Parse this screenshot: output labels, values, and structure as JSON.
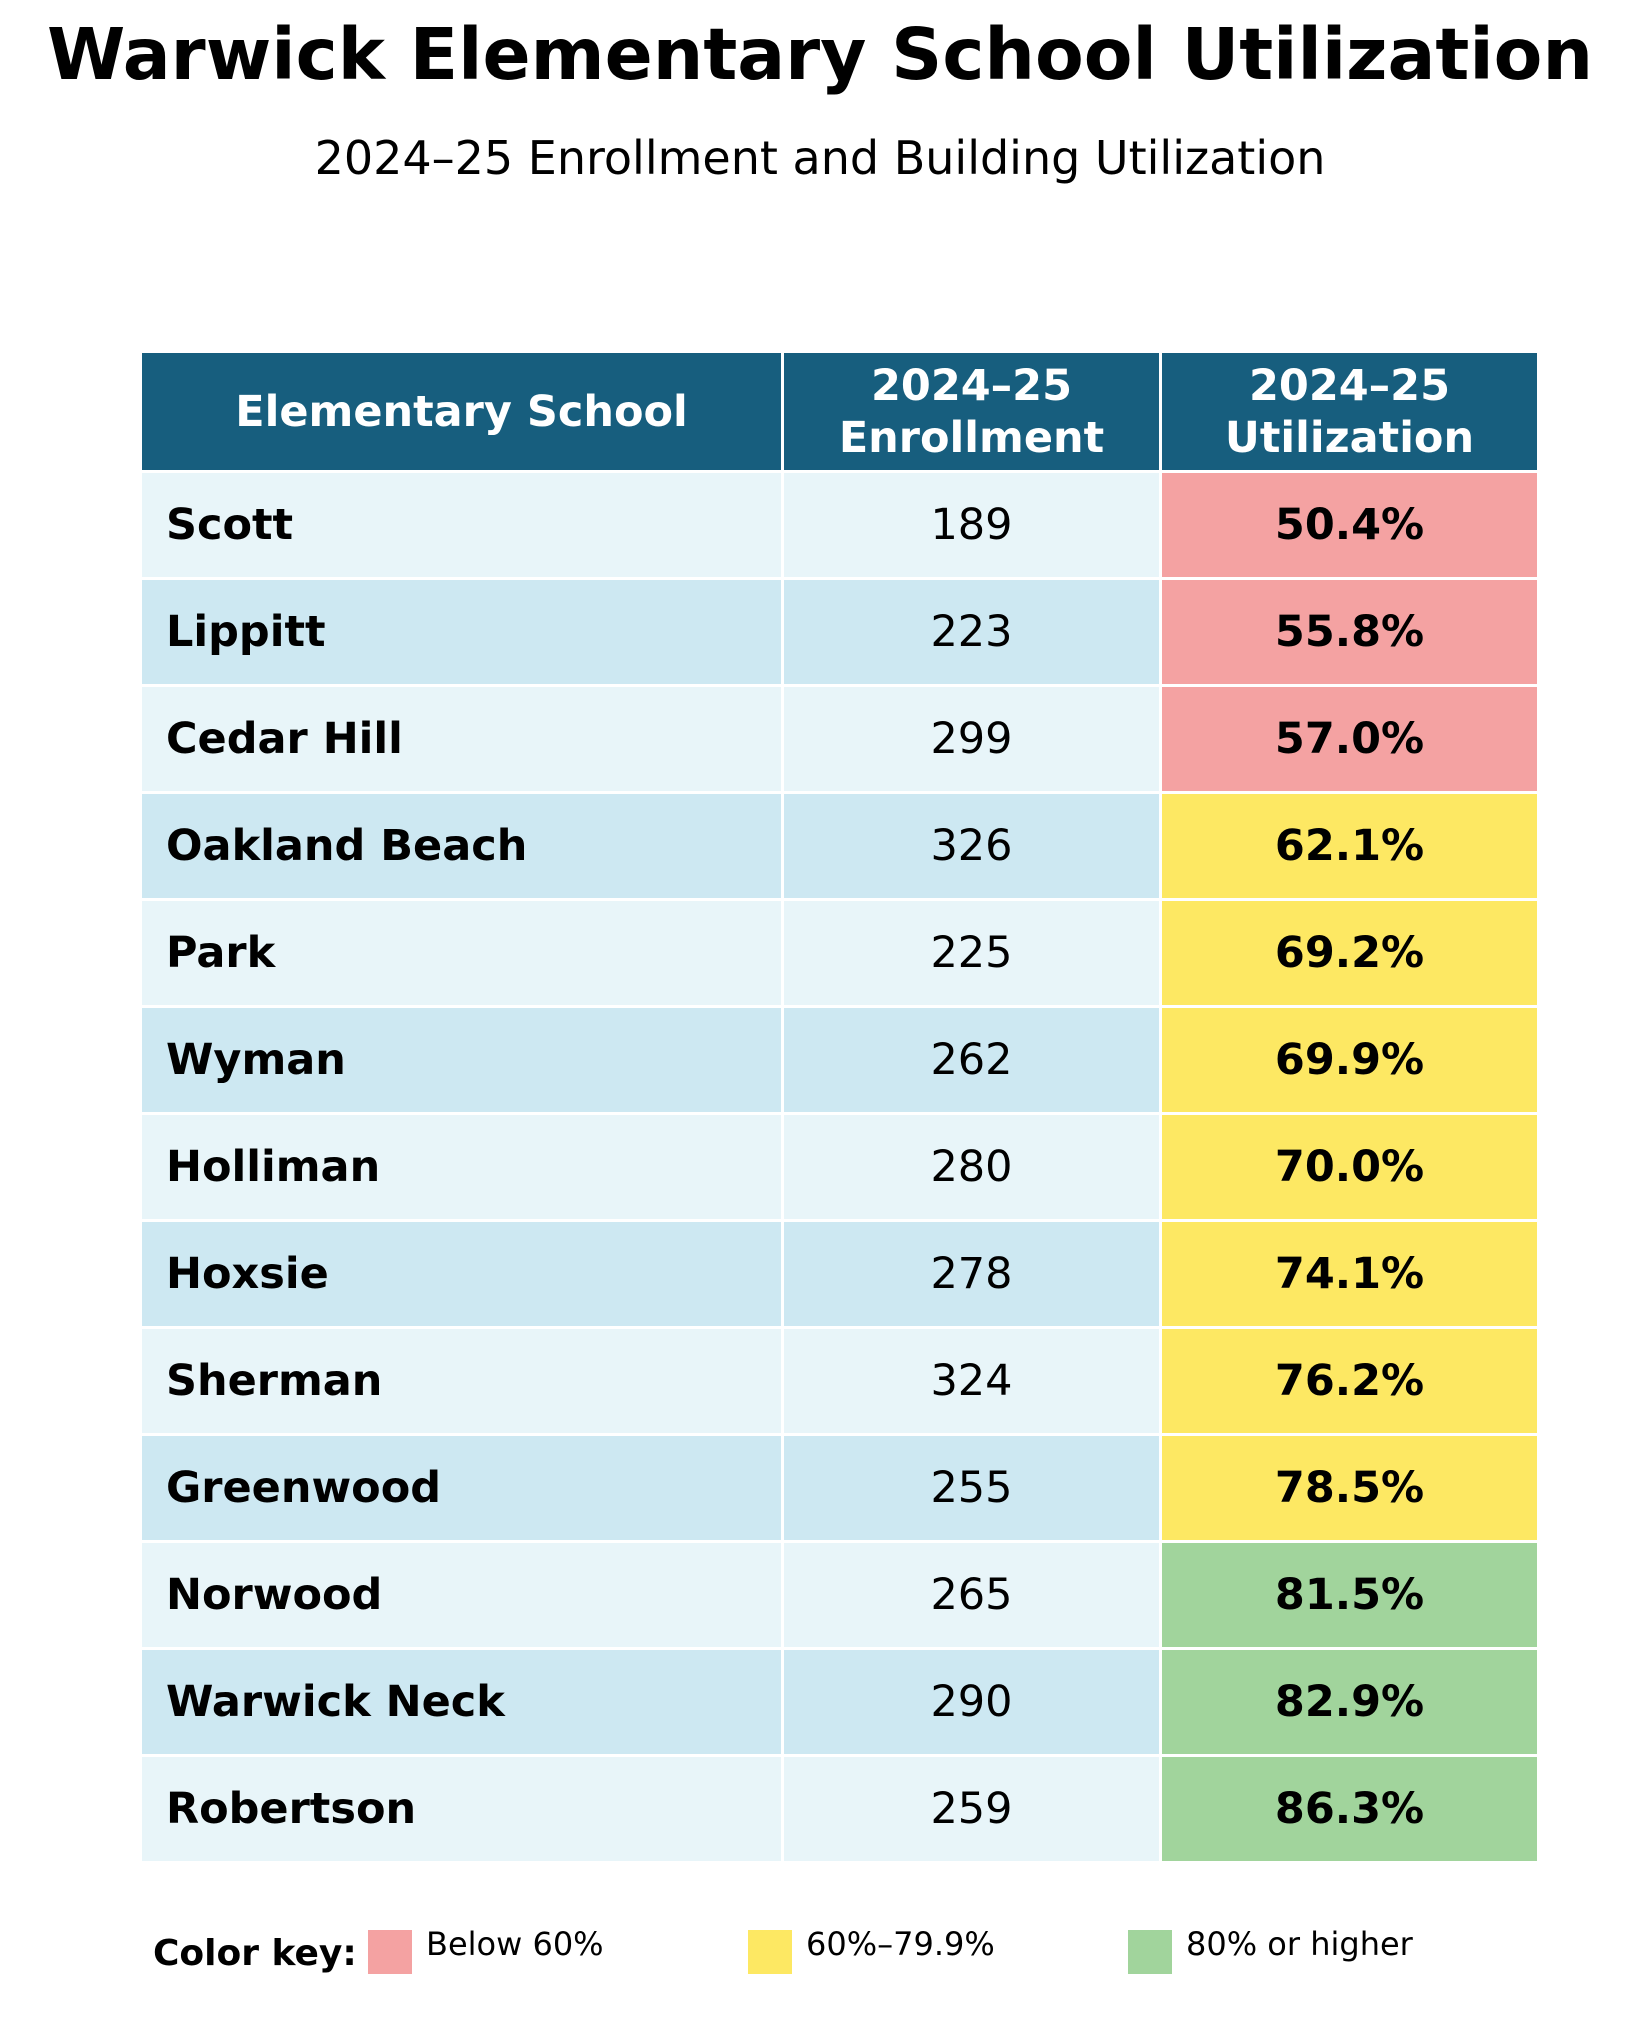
{
  "title": "Warwick Elementary School Utilization",
  "subtitle": "2024–25 Enrollment and Building Utilization",
  "header": {
    "school": "Elementary School",
    "enroll_line1": "2024–25",
    "enroll_line2": "Enrollment",
    "util_line1": "2024–25",
    "util_line2": "Utilization"
  },
  "colors": {
    "header_bg": "#175e7e",
    "row_light": "#e8f5f9",
    "row_dark": "#cde8f2",
    "below_60": "#f4a2a2",
    "from_60_to_79_9": "#fde863",
    "from_80": "#a1d49c"
  },
  "chart_data": {
    "type": "table",
    "title": "Warwick Elementary School Utilization",
    "subtitle": "2024–25 Enrollment and Building Utilization",
    "columns": [
      "Elementary School",
      "2024–25 Enrollment",
      "2024–25 Utilization"
    ],
    "rows": [
      {
        "school": "Scott",
        "enrollment": "189",
        "utilization": "50.4%",
        "utilization_value": 50.4
      },
      {
        "school": "Lippitt",
        "enrollment": "223",
        "utilization": "55.8%",
        "utilization_value": 55.8
      },
      {
        "school": "Cedar Hill",
        "enrollment": "299",
        "utilization": "57.0%",
        "utilization_value": 57.0
      },
      {
        "school": "Oakland Beach",
        "enrollment": "326",
        "utilization": "62.1%",
        "utilization_value": 62.1
      },
      {
        "school": "Park",
        "enrollment": "225",
        "utilization": "69.2%",
        "utilization_value": 69.2
      },
      {
        "school": "Wyman",
        "enrollment": "262",
        "utilization": "69.9%",
        "utilization_value": 69.9
      },
      {
        "school": "Holliman",
        "enrollment": "280",
        "utilization": "70.0%",
        "utilization_value": 70.0
      },
      {
        "school": "Hoxsie",
        "enrollment": "278",
        "utilization": "74.1%",
        "utilization_value": 74.1
      },
      {
        "school": "Sherman",
        "enrollment": "324",
        "utilization": "76.2%",
        "utilization_value": 76.2
      },
      {
        "school": "Greenwood",
        "enrollment": "255",
        "utilization": "78.5%",
        "utilization_value": 78.5
      },
      {
        "school": "Norwood",
        "enrollment": "265",
        "utilization": "81.5%",
        "utilization_value": 81.5
      },
      {
        "school": "Warwick Neck",
        "enrollment": "290",
        "utilization": "82.9%",
        "utilization_value": 82.9
      },
      {
        "school": "Robertson",
        "enrollment": "259",
        "utilization": "86.3%",
        "utilization_value": 86.3
      }
    ],
    "legend": {
      "title": "Color key:",
      "placement": "bottom",
      "items": [
        {
          "label": "Below 60%",
          "color": "#f4a2a2"
        },
        {
          "label": "60%–79.9%",
          "color": "#fde863"
        },
        {
          "label": "80% or higher",
          "color": "#a1d49c"
        }
      ]
    }
  }
}
